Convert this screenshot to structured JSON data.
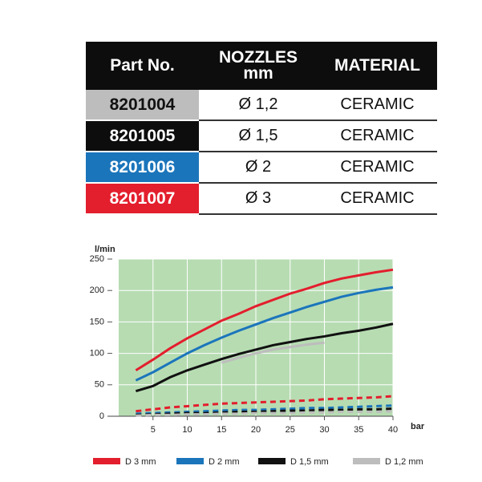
{
  "table": {
    "header": [
      "Part No.",
      "NOZZLES mm",
      "MATERIAL"
    ],
    "rows": [
      {
        "part_no": "8201004",
        "nozzle": "Ø 1,2",
        "material": "CERAMIC",
        "color": "#bdbdbd",
        "text_color": "#111111"
      },
      {
        "part_no": "8201005",
        "nozzle": "Ø 1,5",
        "material": "CERAMIC",
        "color": "#0d0d0d",
        "text_color": "#ffffff"
      },
      {
        "part_no": "8201006",
        "nozzle": "Ø 2",
        "material": "CERAMIC",
        "color": "#1b75bb",
        "text_color": "#ffffff"
      },
      {
        "part_no": "8201007",
        "nozzle": "Ø 3",
        "material": "CERAMIC",
        "color": "#e31e2d",
        "text_color": "#ffffff"
      }
    ]
  },
  "chart_data": {
    "type": "line",
    "y_label": "l/min",
    "x_label": "bar",
    "x": [
      2.5,
      5,
      7.5,
      10,
      12.5,
      15,
      17.5,
      20,
      22.5,
      25,
      27.5,
      30,
      32.5,
      35,
      37.5,
      40
    ],
    "xlim": [
      0,
      40
    ],
    "xticks": [
      5,
      10,
      15,
      20,
      25,
      30,
      35,
      40
    ],
    "ylim": [
      0,
      250
    ],
    "yticks": [
      0,
      50,
      100,
      150,
      200,
      250
    ],
    "grid": true,
    "series": [
      {
        "name": "D 3 mm",
        "color": "#e31e2d",
        "values": [
          73,
          90,
          108,
          124,
          138,
          152,
          163,
          175,
          185,
          195,
          203,
          212,
          219,
          224,
          229,
          233
        ],
        "dashed_values": [
          8,
          11,
          14,
          16,
          18,
          20,
          21,
          22,
          23,
          24,
          25,
          27,
          28,
          29,
          30,
          32
        ]
      },
      {
        "name": "D 2 mm",
        "color": "#1b75bb",
        "values": [
          57,
          70,
          85,
          100,
          113,
          125,
          136,
          146,
          156,
          165,
          174,
          182,
          190,
          196,
          201,
          205
        ],
        "dashed_values": [
          4,
          5,
          6,
          7,
          8,
          9,
          10,
          10,
          11,
          12,
          13,
          13,
          14,
          15,
          16,
          17
        ]
      },
      {
        "name": "D 1,5 mm",
        "color": "#111111",
        "values": [
          40,
          48,
          62,
          73,
          82,
          91,
          99,
          106,
          113,
          118,
          123,
          127,
          132,
          136,
          141,
          147
        ],
        "dashed_values": [
          2,
          3,
          4,
          5,
          5,
          6,
          7,
          7,
          8,
          9,
          9,
          10,
          10,
          11,
          11,
          12
        ]
      },
      {
        "name": "D 1,2 mm",
        "color": "#bdbdbd",
        "values": [
          null,
          null,
          null,
          null,
          null,
          85,
          93,
          100,
          106,
          110,
          114,
          117,
          null,
          null,
          null,
          null
        ],
        "dashed_values": [
          1,
          2,
          2,
          3,
          3,
          4,
          4,
          5,
          5,
          5,
          6,
          6,
          7,
          7,
          7,
          8
        ]
      }
    ]
  }
}
